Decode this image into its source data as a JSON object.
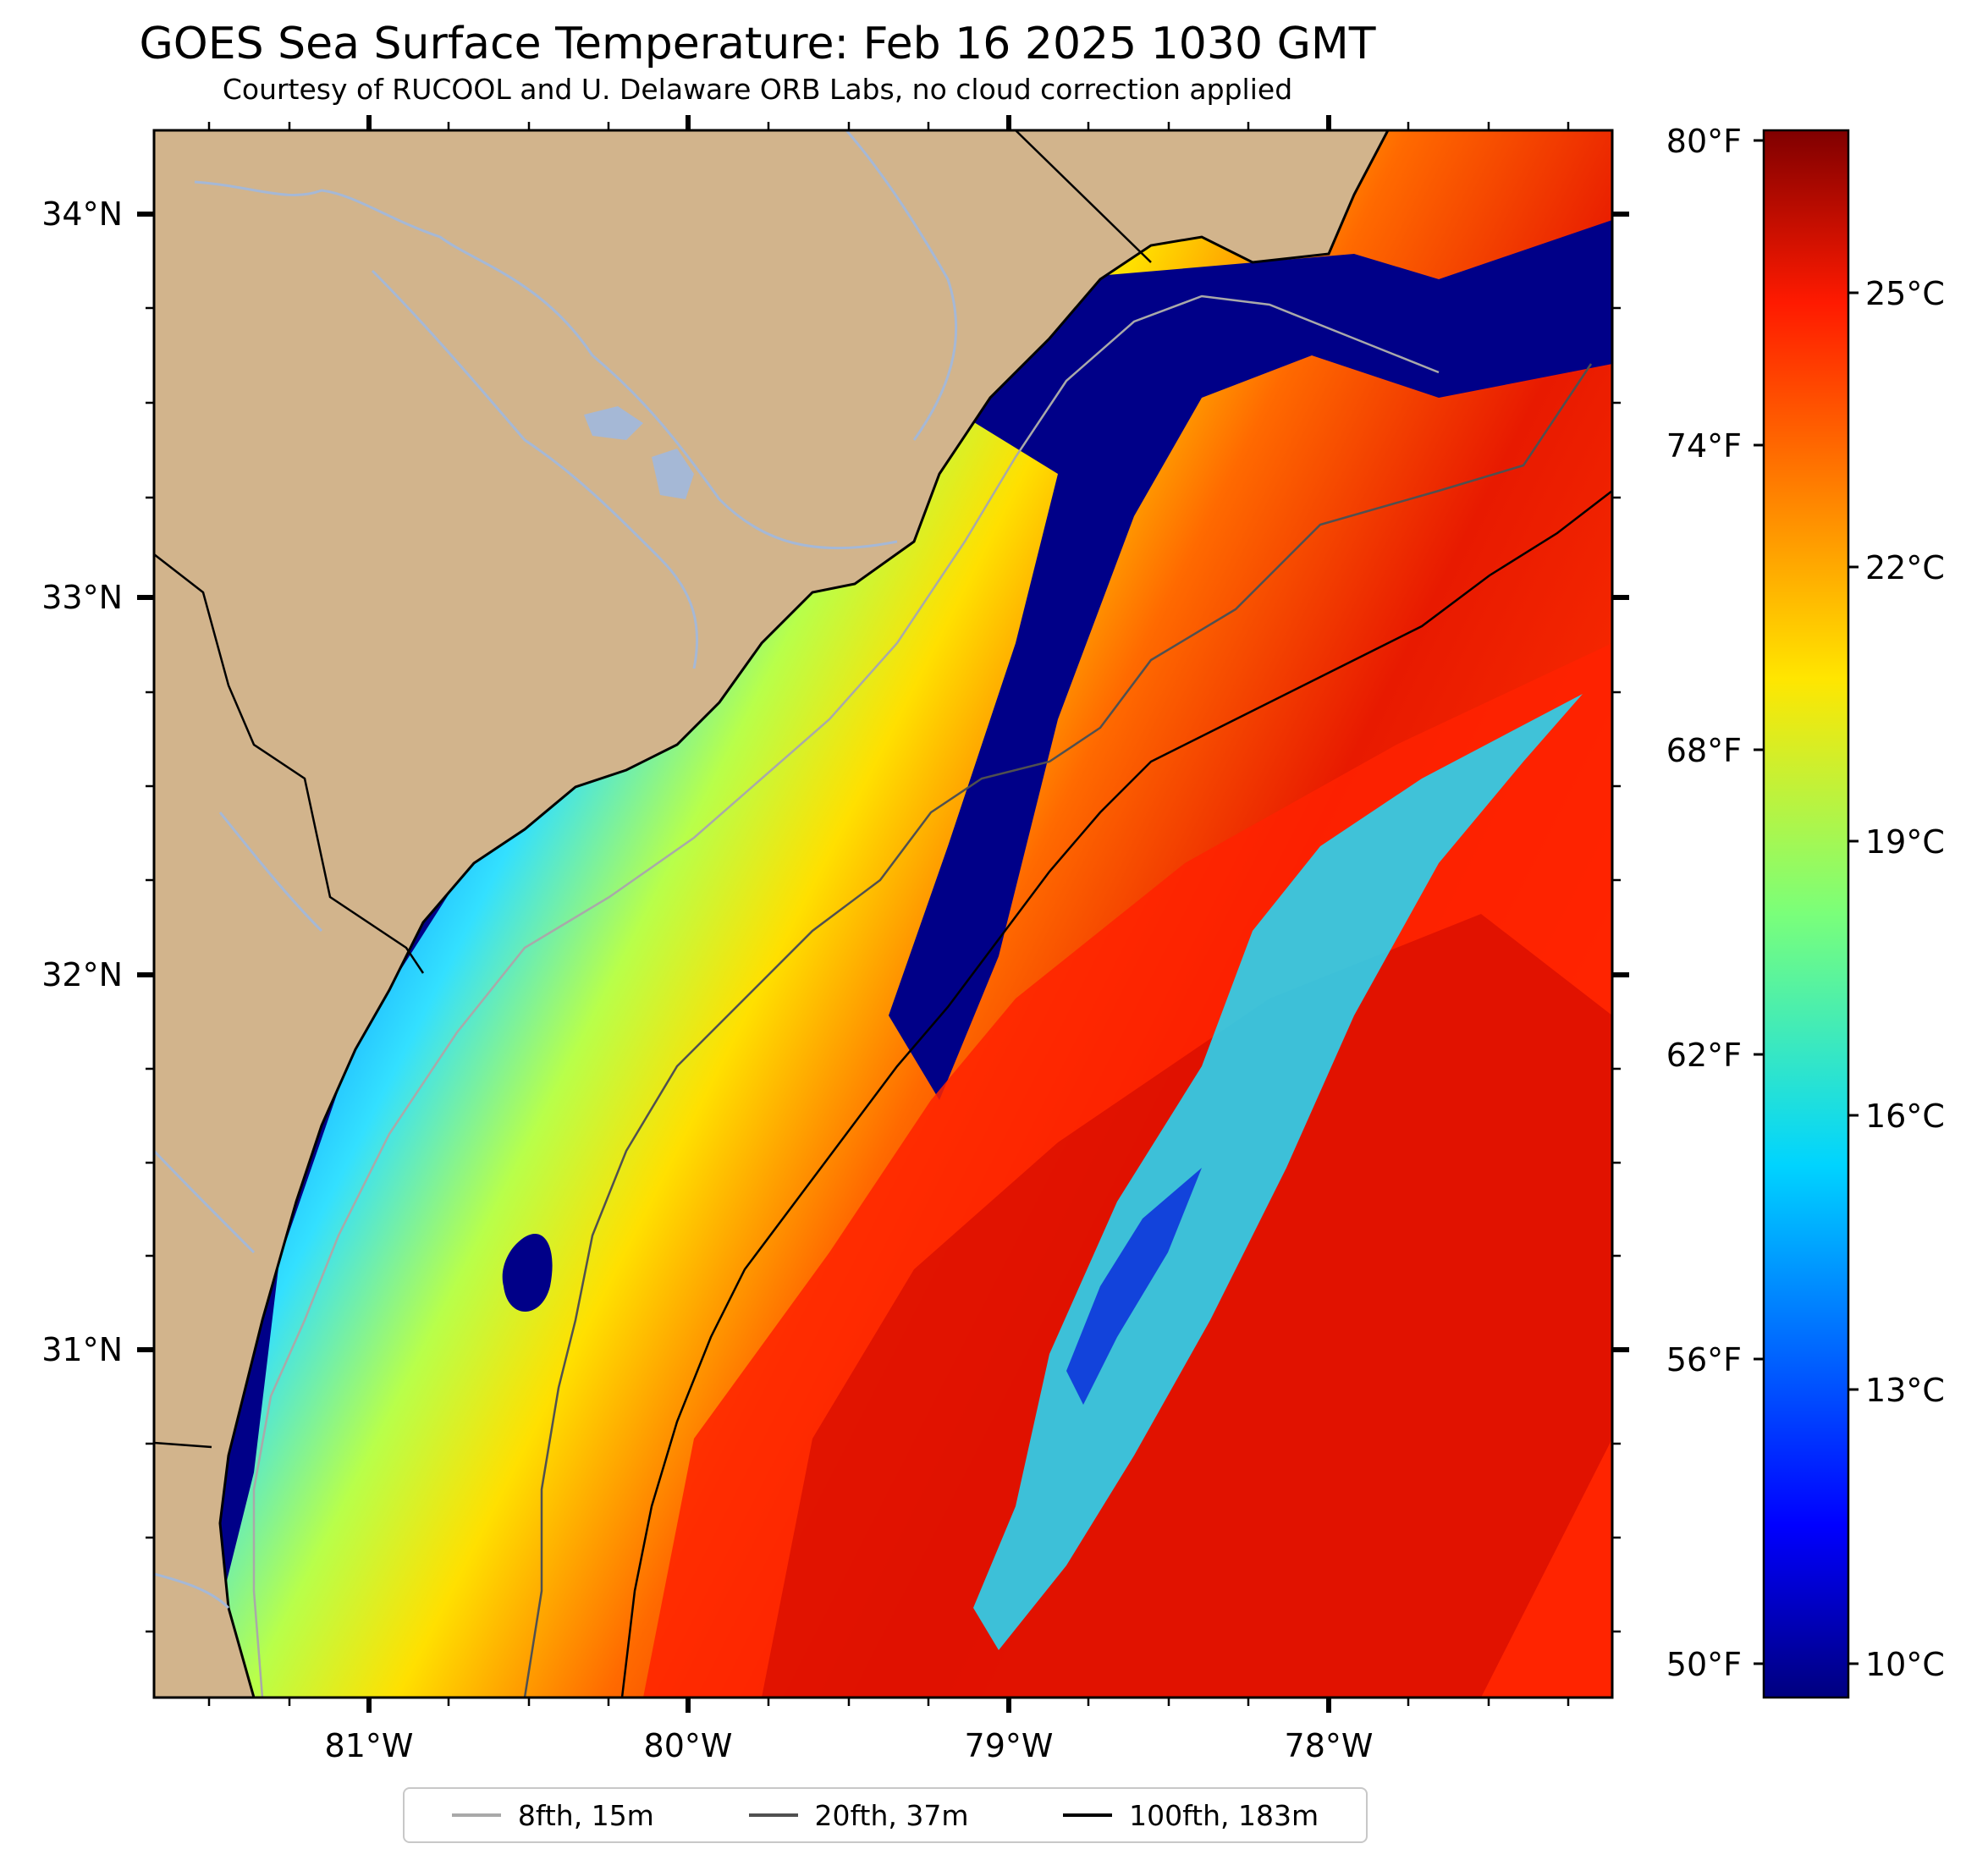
{
  "title": "GOES Sea Surface Temperature: Feb 16 2025 1030 GMT",
  "subtitle": "Courtesy of RUCOOL and U. Delaware ORB Labs, no cloud correction applied",
  "map": {
    "lat_labels": [
      "34°N",
      "33°N",
      "32°N",
      "31°N"
    ],
    "lon_labels": [
      "81°W",
      "80°W",
      "79°W",
      "78°W"
    ],
    "land_color": "#d2b48c",
    "coast_color": "#000000",
    "river_color": "#a5b8d6"
  },
  "colorbar": {
    "colormap": "jet",
    "fahrenheit_labels": [
      "80°F",
      "74°F",
      "68°F",
      "62°F",
      "56°F",
      "50°F"
    ],
    "celsius_labels": [
      "25°C",
      "22°C",
      "19°C",
      "16°C",
      "13°C",
      "10°C"
    ],
    "celsius_min": 9.5,
    "celsius_max": 27.0
  },
  "legend": {
    "items": [
      {
        "label": "8fth, 15m",
        "color": "#a9a9a9"
      },
      {
        "label": "20fth, 37m",
        "color": "#505050"
      },
      {
        "label": "100fth, 183m",
        "color": "#000000"
      }
    ]
  }
}
